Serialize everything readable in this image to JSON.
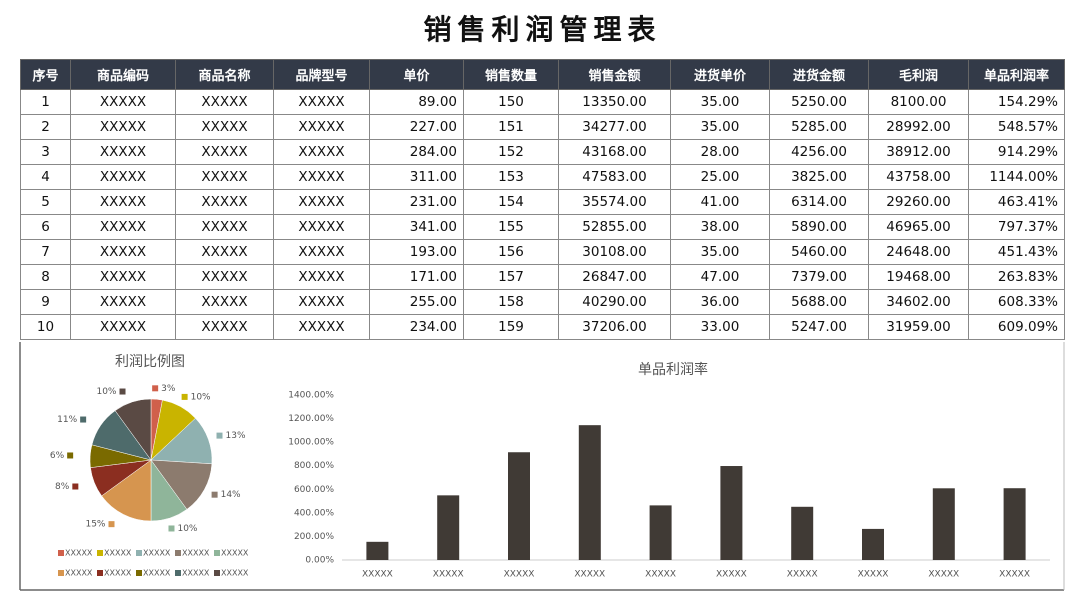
{
  "title": "销售利润管理表",
  "table": {
    "headers": [
      "序号",
      "商品编码",
      "商品名称",
      "品牌型号",
      "单价",
      "销售数量",
      "销售金额",
      "进货单价",
      "进货金额",
      "毛利润",
      "单品利润率"
    ],
    "rows": [
      [
        "1",
        "XXXXX",
        "XXXXX",
        "XXXXX",
        "89.00",
        "150",
        "13350.00",
        "35.00",
        "5250.00",
        "8100.00",
        "154.29%"
      ],
      [
        "2",
        "XXXXX",
        "XXXXX",
        "XXXXX",
        "227.00",
        "151",
        "34277.00",
        "35.00",
        "5285.00",
        "28992.00",
        "548.57%"
      ],
      [
        "3",
        "XXXXX",
        "XXXXX",
        "XXXXX",
        "284.00",
        "152",
        "43168.00",
        "28.00",
        "4256.00",
        "38912.00",
        "914.29%"
      ],
      [
        "4",
        "XXXXX",
        "XXXXX",
        "XXXXX",
        "311.00",
        "153",
        "47583.00",
        "25.00",
        "3825.00",
        "43758.00",
        "1144.00%"
      ],
      [
        "5",
        "XXXXX",
        "XXXXX",
        "XXXXX",
        "231.00",
        "154",
        "35574.00",
        "41.00",
        "6314.00",
        "29260.00",
        "463.41%"
      ],
      [
        "6",
        "XXXXX",
        "XXXXX",
        "XXXXX",
        "341.00",
        "155",
        "52855.00",
        "38.00",
        "5890.00",
        "46965.00",
        "797.37%"
      ],
      [
        "7",
        "XXXXX",
        "XXXXX",
        "XXXXX",
        "193.00",
        "156",
        "30108.00",
        "35.00",
        "5460.00",
        "24648.00",
        "451.43%"
      ],
      [
        "8",
        "XXXXX",
        "XXXXX",
        "XXXXX",
        "171.00",
        "157",
        "26847.00",
        "47.00",
        "7379.00",
        "19468.00",
        "263.83%"
      ],
      [
        "9",
        "XXXXX",
        "XXXXX",
        "XXXXX",
        "255.00",
        "158",
        "40290.00",
        "36.00",
        "5688.00",
        "34602.00",
        "608.33%"
      ],
      [
        "10",
        "XXXXX",
        "XXXXX",
        "XXXXX",
        "234.00",
        "159",
        "37206.00",
        "33.00",
        "5247.00",
        "31959.00",
        "609.09%"
      ]
    ]
  },
  "chart_data": [
    {
      "type": "pie",
      "title": "利润比例图",
      "categories": [
        "XXXXX",
        "XXXXX",
        "XXXXX",
        "XXXXX",
        "XXXXX",
        "XXXXX",
        "XXXXX",
        "XXXXX",
        "XXXXX",
        "XXXXX"
      ],
      "values": [
        3,
        10,
        13,
        14,
        10,
        15,
        8,
        6,
        11,
        10
      ],
      "value_labels": [
        "3%",
        "10%",
        "13%",
        "14%",
        "10%",
        "15%",
        "8%",
        "6%",
        "11%",
        "10%"
      ],
      "colors": [
        "#d0604b",
        "#c9b400",
        "#8fb1b0",
        "#8c7b6e",
        "#8fb59a",
        "#d6954f",
        "#8b2e20",
        "#7a6a00",
        "#4e6b6b",
        "#5a4a44"
      ]
    },
    {
      "type": "bar",
      "title": "单品利润率",
      "categories": [
        "XXXXX",
        "XXXXX",
        "XXXXX",
        "XXXXX",
        "XXXXX",
        "XXXXX",
        "XXXXX",
        "XXXXX",
        "XXXXX",
        "XXXXX"
      ],
      "values": [
        154.29,
        548.57,
        914.29,
        1144.0,
        463.41,
        797.37,
        451.43,
        263.83,
        608.33,
        609.09
      ],
      "color": "#403a35",
      "ylim": [
        0,
        1400
      ],
      "yticks": [
        {
          "value": 0,
          "label": "0.00%"
        },
        {
          "value": 200,
          "label": "200.00%"
        },
        {
          "value": 400,
          "label": "400.00%"
        },
        {
          "value": 600,
          "label": "600.00%"
        },
        {
          "value": 800,
          "label": "800.00%"
        },
        {
          "value": 1000,
          "label": "1000.00%"
        },
        {
          "value": 1200,
          "label": "1200.00%"
        },
        {
          "value": 1400,
          "label": "1400.00%"
        }
      ],
      "grid": false
    }
  ]
}
